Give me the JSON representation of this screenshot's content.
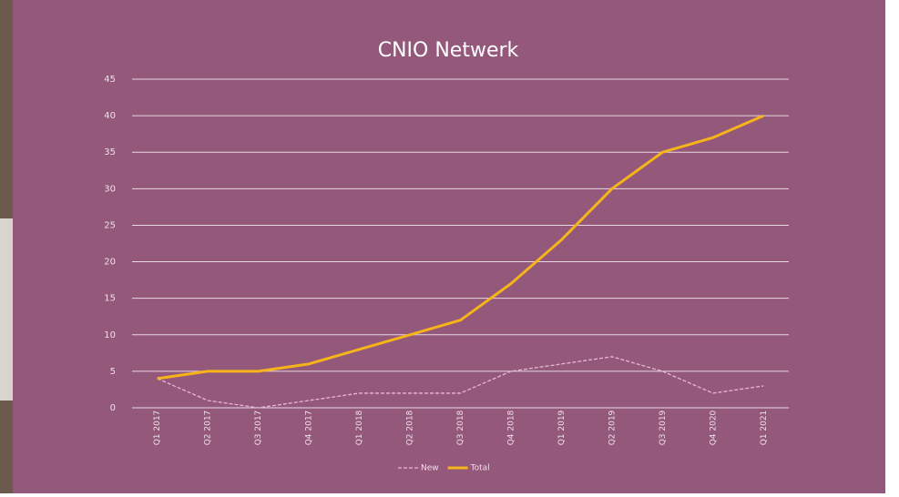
{
  "chart_data": {
    "type": "line",
    "title": "CNIO Netwerk",
    "categories": [
      "Q1 2017",
      "Q2 2017",
      "Q3 2017",
      "Q4 2017",
      "Q1 2018",
      "Q2 2018",
      "Q3 2018",
      "Q4 2018",
      "Q1 2019",
      "Q2 2019",
      "Q3 2019",
      "Q4 2020",
      "Q1 2021"
    ],
    "series": [
      {
        "name": "New",
        "color": "#e6b8d6",
        "dashed": true,
        "values": [
          4,
          1,
          0,
          1,
          2,
          2,
          2,
          5,
          6,
          7,
          5,
          2,
          3
        ]
      },
      {
        "name": "Total",
        "color": "#f5b41a",
        "dashed": false,
        "values": [
          4,
          5,
          5,
          6,
          8,
          10,
          12,
          17,
          23,
          30,
          35,
          37,
          40
        ]
      }
    ],
    "ylim": [
      0,
      45
    ],
    "yticks": [
      0,
      5,
      10,
      15,
      20,
      25,
      30,
      35,
      40,
      45
    ],
    "grid": true,
    "legend": "bottom"
  }
}
